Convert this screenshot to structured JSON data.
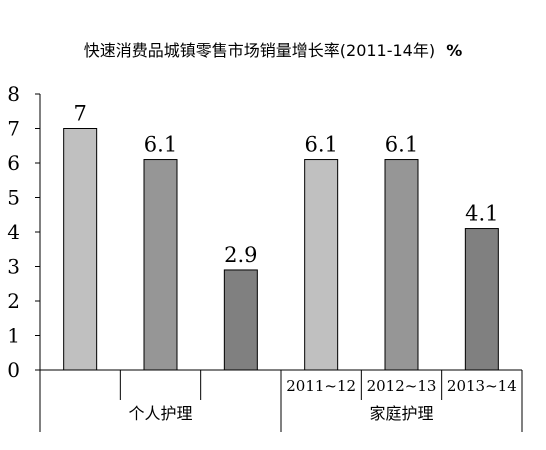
{
  "chart_data": {
    "type": "bar",
    "title": "快速消费品城镇零售市场销量增长率(2011-14年)",
    "unit": "%",
    "ylim": [
      0,
      8
    ],
    "yticks": [
      "0",
      "1",
      "2",
      "3",
      "4",
      "5",
      "6",
      "7",
      "8"
    ],
    "groups": [
      {
        "name": "个人护理",
        "bars": [
          {
            "label": "",
            "value": 7,
            "value_label": "7",
            "color": "#c0c0c0"
          },
          {
            "label": "",
            "value": 6.1,
            "value_label": "6.1",
            "color": "#969696"
          },
          {
            "label": "",
            "value": 2.9,
            "value_label": "2.9",
            "color": "#808080"
          }
        ]
      },
      {
        "name": "家庭护理",
        "bars": [
          {
            "label": "2011~12",
            "value": 6.1,
            "value_label": "6.1",
            "color": "#c0c0c0"
          },
          {
            "label": "2012~13",
            "value": 6.1,
            "value_label": "6.1",
            "color": "#969696"
          },
          {
            "label": "2013~14",
            "value": 4.1,
            "value_label": "4.1",
            "color": "#808080"
          }
        ]
      }
    ]
  }
}
